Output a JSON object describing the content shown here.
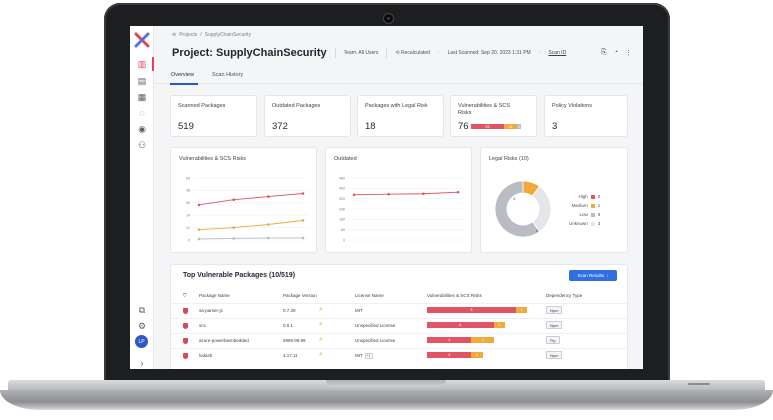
{
  "breadcrumb": {
    "root": "Projects",
    "separator": "/",
    "current": "SupplyChainSecurity"
  },
  "header": {
    "title": "Project: SupplyChainSecurity",
    "team_label": "Team:",
    "team_value": "All Users",
    "recalc": "Recalculated",
    "last_scanned": "Last Scanned: Sep 20, 2023 1:31 PM",
    "scan_id": "Scan ID"
  },
  "tabs": [
    {
      "label": "Overview"
    },
    {
      "label": "Scan History"
    }
  ],
  "kpis": [
    {
      "label": "Scanned Packages",
      "value": "519"
    },
    {
      "label": "Outdated Packages",
      "value": "372"
    },
    {
      "label": "Packages with Legal Risk",
      "value": "18"
    },
    {
      "label": "Vulnerabilities & SCS Risks",
      "value": "76",
      "bar": [
        "53",
        "21",
        "2"
      ]
    },
    {
      "label": "Policy Violations",
      "value": "3"
    }
  ],
  "colors": {
    "red": "#e05464",
    "orange": "#f2a93b",
    "gray": "#b9bcc2",
    "blue": "#2f6fe0",
    "light": "#e4e6ea"
  },
  "chart_data": [
    {
      "type": "line",
      "title": "Vulnerabilities & SCS Risks",
      "x": [
        1,
        2,
        3,
        4
      ],
      "yticks": [
        0,
        12,
        24,
        36,
        48,
        60
      ],
      "ylim": [
        0,
        60
      ],
      "series": [
        {
          "color": "#e05464",
          "values": [
            34,
            39,
            42,
            45
          ]
        },
        {
          "color": "#f2a93b",
          "values": [
            10,
            12,
            15,
            19
          ]
        },
        {
          "color": "#b9bcc2",
          "values": [
            1,
            1.5,
            2,
            2
          ]
        }
      ]
    },
    {
      "type": "line",
      "title": "Outdated",
      "x": [
        1,
        2,
        3,
        4
      ],
      "yticks": [
        0,
        80,
        160,
        240,
        320,
        400,
        480
      ],
      "ylim": [
        0,
        480
      ],
      "series": [
        {
          "color": "#e05464",
          "values": [
            350,
            355,
            358,
            370
          ]
        }
      ]
    },
    {
      "type": "pie",
      "title": "Legal Risks (10)",
      "slices": [
        {
          "label": "High",
          "value": 0,
          "color": "#e05464"
        },
        {
          "label": "Medium",
          "value": 1,
          "color": "#f2a93b"
        },
        {
          "label": "Low",
          "value": 6,
          "color": "#b9bcc2"
        },
        {
          "label": "Unknown",
          "value": 3,
          "color": "#e4e6ea"
        }
      ],
      "donut_labels": [
        "3",
        "6"
      ]
    }
  ],
  "table": {
    "title": "Top Vulnerable Packages (10/519)",
    "button": "Scan Results",
    "columns": [
      "Package Name",
      "Package Version",
      "License Name",
      "Vulnerabilities & SCS Risks",
      "Dependency Type"
    ],
    "rows": [
      {
        "name": "sa-parser-js",
        "version": "0.7.29",
        "license": "MIT",
        "license_extra": "",
        "bar": [
          8,
          1
        ],
        "bar_labels": [
          "8",
          "1"
        ],
        "dep": "Npm"
      },
      {
        "name": "scs",
        "version": "0.0.1",
        "license": "Unspecified License",
        "license_extra": "",
        "bar": [
          6,
          1
        ],
        "bar_labels": [
          "6",
          "1"
        ],
        "dep": "Npm"
      },
      {
        "name": "azure-powerbiembedded",
        "version": "6969.99.99",
        "license": "Unspecified License",
        "license_extra": "",
        "bar": [
          4,
          2
        ],
        "bar_labels": [
          "4",
          "2"
        ],
        "dep": "Pip"
      },
      {
        "name": "lodash",
        "version": "4.17.11",
        "license": "MIT",
        "license_extra": "+1",
        "bar": [
          4,
          1
        ],
        "bar_labels": [
          "4",
          "1"
        ],
        "dep": "Npm"
      }
    ]
  }
}
